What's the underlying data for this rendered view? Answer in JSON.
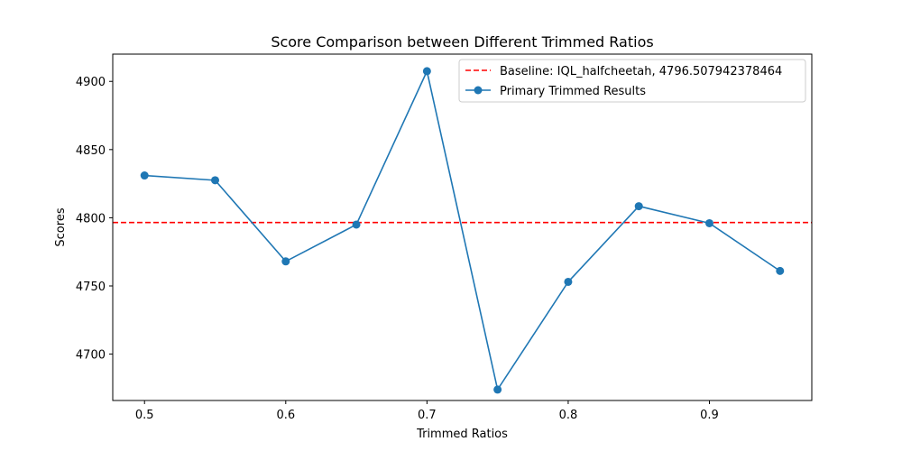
{
  "chart_data": {
    "type": "line",
    "title": "Score Comparison between Different Trimmed Ratios",
    "xlabel": "Trimmed Ratios",
    "ylabel": "Scores",
    "xlim": [
      0.4775,
      0.9725
    ],
    "ylim": [
      4666,
      4920
    ],
    "xticks": [
      0.5,
      0.6,
      0.7,
      0.8,
      0.9
    ],
    "xtick_labels": [
      "0.5",
      "0.6",
      "0.7",
      "0.8",
      "0.9"
    ],
    "yticks": [
      4700,
      4750,
      4800,
      4850,
      4900
    ],
    "ytick_labels": [
      "4700",
      "4750",
      "4800",
      "4850",
      "4900"
    ],
    "grid": false,
    "legend_position": "upper right",
    "baseline": {
      "name": "Baseline: IQL_halfcheetah, 4796.507942378464",
      "value": 4796.507942378464,
      "color": "#ff0000",
      "style": "dashed"
    },
    "series": [
      {
        "name": "Primary Trimmed Results",
        "color": "#1f77b4",
        "marker": "circle",
        "x": [
          0.5,
          0.55,
          0.6,
          0.65,
          0.7,
          0.75,
          0.8,
          0.85,
          0.9,
          0.95
        ],
        "y": [
          4831,
          4827.5,
          4768,
          4795,
          4907.5,
          4674,
          4753,
          4808.5,
          4796,
          4761
        ]
      }
    ]
  }
}
